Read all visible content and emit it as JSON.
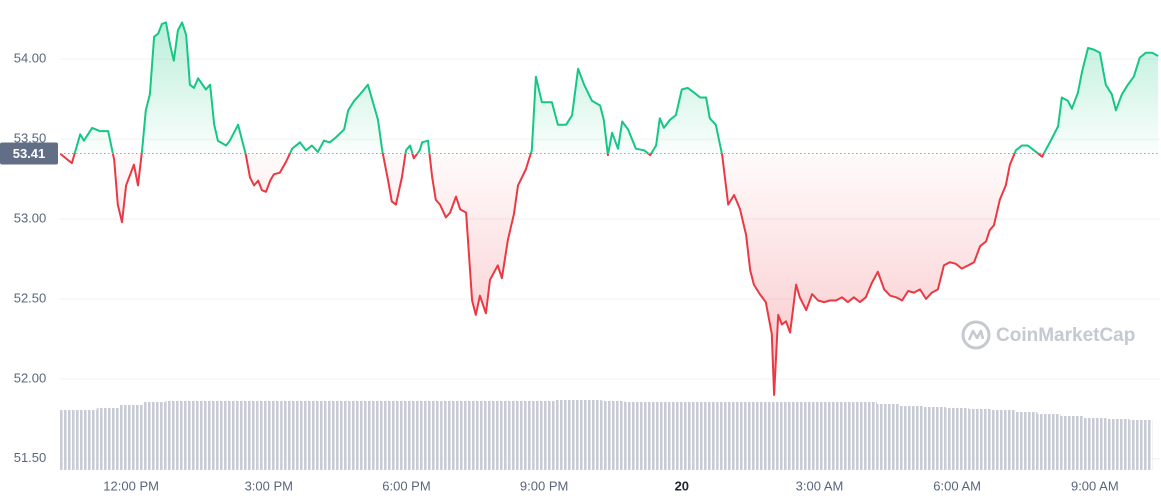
{
  "chart_data": {
    "type": "line",
    "x": [
      10.45,
      10.62,
      10.71,
      10.89,
      10.97,
      11.15,
      11.32,
      11.5,
      11.63,
      11.71,
      11.8,
      11.89,
      12.06,
      12.15,
      12.24,
      12.32,
      12.41,
      12.5,
      12.59,
      12.67,
      12.76,
      12.85,
      12.93,
      13.02,
      13.11,
      13.2,
      13.28,
      13.37,
      13.46,
      13.63,
      13.72,
      13.81,
      13.89,
      14.07,
      14.15,
      14.33,
      14.5,
      14.59,
      14.68,
      14.77,
      14.85,
      14.94,
      15.03,
      15.11,
      15.24,
      15.38,
      15.51,
      15.68,
      15.81,
      15.94,
      16.07,
      16.2,
      16.33,
      16.46,
      16.64,
      16.73,
      16.86,
      16.99,
      17.16,
      17.38,
      17.47,
      17.6,
      17.68,
      17.77,
      17.9,
      17.99,
      18.08,
      18.16,
      18.29,
      18.34,
      18.47,
      18.56,
      18.64,
      18.73,
      18.86,
      18.95,
      19.08,
      19.17,
      19.3,
      19.43,
      19.51,
      19.6,
      19.73,
      19.82,
      19.99,
      20.08,
      20.21,
      20.34,
      20.43,
      20.6,
      20.73,
      20.82,
      20.95,
      21.17,
      21.3,
      21.48,
      21.61,
      21.74,
      21.87,
      22.04,
      22.22,
      22.3,
      22.39,
      22.48,
      22.61,
      22.7,
      22.83,
      23.0,
      23.18,
      23.31,
      23.44,
      23.52,
      23.61,
      23.74,
      23.87,
      24.0,
      24.13,
      24.27,
      24.4,
      24.53,
      24.61,
      24.74,
      24.88,
      25.01,
      25.14,
      25.27,
      25.4,
      25.49,
      25.57,
      25.7,
      25.83,
      25.96,
      26.01,
      26.1,
      26.18,
      26.27,
      26.36,
      26.49,
      26.57,
      26.71,
      26.84,
      26.97,
      27.1,
      27.23,
      27.36,
      27.49,
      27.62,
      27.75,
      27.88,
      28.01,
      28.14,
      28.27,
      28.41,
      28.54,
      28.67,
      28.8,
      28.93,
      29.06,
      29.19,
      29.32,
      29.45,
      29.58,
      29.71,
      29.84,
      29.97,
      30.1,
      30.24,
      30.37,
      30.5,
      30.63,
      30.71,
      30.8,
      30.93,
      31.06,
      31.15,
      31.28,
      31.41,
      31.54,
      31.72,
      31.85,
      32.02,
      32.2,
      32.28,
      32.41,
      32.5,
      32.63,
      32.72,
      32.85,
      32.98,
      33.11,
      33.24,
      33.37,
      33.46,
      33.59,
      33.72,
      33.85,
      33.98,
      34.11,
      34.25,
      34.38
    ],
    "values": [
      53.41,
      53.37,
      53.35,
      53.53,
      53.49,
      53.57,
      53.55,
      53.55,
      53.37,
      53.09,
      52.98,
      53.21,
      53.34,
      53.21,
      53.43,
      53.68,
      53.78,
      54.14,
      54.16,
      54.22,
      54.23,
      54.09,
      53.99,
      54.18,
      54.23,
      54.15,
      53.84,
      53.82,
      53.88,
      53.81,
      53.84,
      53.59,
      53.49,
      53.46,
      53.49,
      53.59,
      53.4,
      53.26,
      53.21,
      53.24,
      53.18,
      53.17,
      53.24,
      53.28,
      53.29,
      53.36,
      53.44,
      53.48,
      53.43,
      53.46,
      53.42,
      53.49,
      53.48,
      53.51,
      53.56,
      53.68,
      53.74,
      53.78,
      53.84,
      53.62,
      53.43,
      53.24,
      53.11,
      53.09,
      53.26,
      53.43,
      53.46,
      53.38,
      53.43,
      53.48,
      53.49,
      53.26,
      53.12,
      53.09,
      53.01,
      53.04,
      53.14,
      53.06,
      53.04,
      52.49,
      52.4,
      52.52,
      52.41,
      52.62,
      52.71,
      52.63,
      52.87,
      53.03,
      53.21,
      53.31,
      53.43,
      53.89,
      53.73,
      53.73,
      53.59,
      53.59,
      53.65,
      53.94,
      53.84,
      53.74,
      53.71,
      53.62,
      53.4,
      53.54,
      53.44,
      53.61,
      53.56,
      53.44,
      53.43,
      53.4,
      53.46,
      53.63,
      53.57,
      53.62,
      53.65,
      53.81,
      53.82,
      53.79,
      53.76,
      53.76,
      53.63,
      53.59,
      53.4,
      53.09,
      53.15,
      53.06,
      52.9,
      52.68,
      52.59,
      52.53,
      52.48,
      52.28,
      51.9,
      52.4,
      52.34,
      52.36,
      52.29,
      52.59,
      52.51,
      52.43,
      52.53,
      52.49,
      52.48,
      52.49,
      52.49,
      52.51,
      52.48,
      52.51,
      52.48,
      52.51,
      52.6,
      52.67,
      52.56,
      52.52,
      52.51,
      52.49,
      52.55,
      52.54,
      52.56,
      52.5,
      52.54,
      52.56,
      52.71,
      52.73,
      52.72,
      52.69,
      52.71,
      52.73,
      52.83,
      52.86,
      52.93,
      52.96,
      53.12,
      53.21,
      53.34,
      53.43,
      53.46,
      53.46,
      53.42,
      53.39,
      53.48,
      53.58,
      53.76,
      53.74,
      53.69,
      53.79,
      53.92,
      54.07,
      54.06,
      54.04,
      53.84,
      53.78,
      53.68,
      53.78,
      53.84,
      53.89,
      54.01,
      54.04,
      54.04,
      54.02
    ],
    "colors": {
      "up": "#16c784",
      "down": "#ea3943"
    },
    "baseline": 53.41,
    "xlim": [
      10.45,
      34.42
    ],
    "xticks": [
      {
        "value": 12,
        "label": "12:00 PM"
      },
      {
        "value": 15,
        "label": "3:00 PM"
      },
      {
        "value": 18,
        "label": "6:00 PM"
      },
      {
        "value": 21,
        "label": "9:00 PM"
      },
      {
        "value": 24,
        "label": "20"
      },
      {
        "value": 27,
        "label": "3:00 AM"
      },
      {
        "value": 30,
        "label": "6:00 AM"
      },
      {
        "value": 33,
        "label": "9:00 AM"
      }
    ],
    "ylim": [
      51.43,
      54.37
    ],
    "yticks": [
      {
        "value": 51.5,
        "label": "51.50"
      },
      {
        "value": 52,
        "label": "52.00"
      },
      {
        "value": 52.5,
        "label": "52.50"
      },
      {
        "value": 53,
        "label": "53.00"
      },
      {
        "value": 53.5,
        "label": "53.50"
      },
      {
        "value": 54,
        "label": "54.00"
      }
    ],
    "grid": true,
    "volume": {
      "color": "#a9afbb",
      "x": [
        10.5,
        11,
        11.5,
        12,
        12.5,
        13,
        13.5,
        14,
        14.5,
        15,
        15.5,
        16,
        16.5,
        17,
        17.5,
        18,
        18.5,
        19,
        19.5,
        20,
        20.5,
        21,
        21.5,
        22,
        22.5,
        23,
        23.5,
        24,
        24.5,
        25,
        25.5,
        26,
        26.5,
        27,
        27.5,
        28,
        28.5,
        29,
        29.5,
        30,
        30.5,
        31,
        31.5,
        32,
        32.5,
        33,
        33.5,
        34
      ],
      "values": [
        60,
        60,
        62,
        65,
        68,
        69,
        69,
        69,
        69,
        69,
        69,
        69,
        69,
        69,
        69,
        69,
        69,
        69,
        69,
        69,
        69,
        69,
        70,
        70,
        69,
        68,
        68,
        68,
        68,
        68,
        68,
        68,
        68,
        68,
        68,
        68,
        66,
        64,
        63,
        62,
        61,
        60,
        58,
        56,
        54,
        52,
        51,
        50
      ]
    },
    "y2lim": [
      0,
      100
    ],
    "watermark": "CoinMarketCap"
  }
}
